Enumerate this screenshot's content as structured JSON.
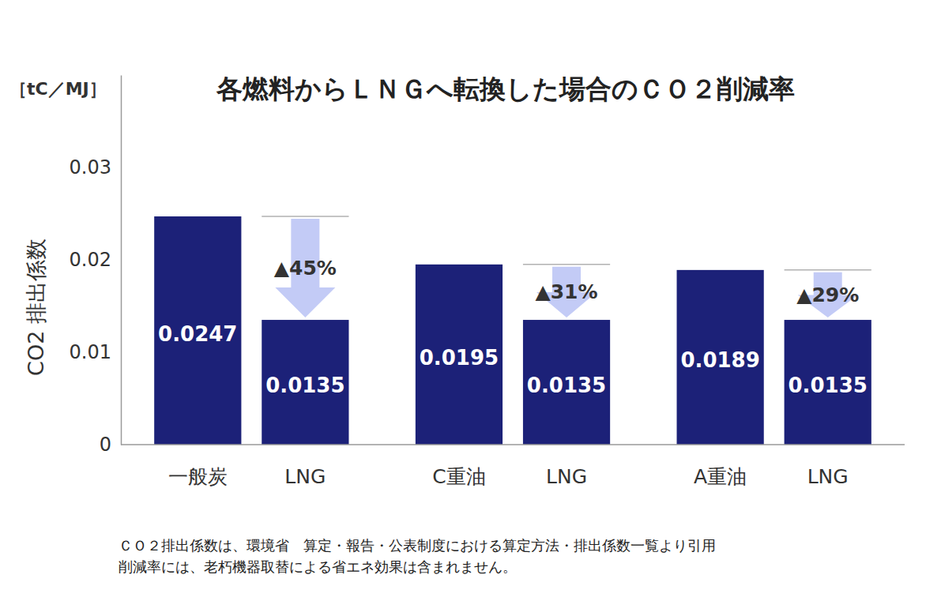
{
  "chart_data": {
    "type": "bar",
    "title": "各燃料からＬＮＧへ転換した場合のＣＯ２削減率",
    "unit_label": "［tC／MJ］",
    "y_label": "CO2 排出係数",
    "categories": [
      "一般炭",
      "LNG",
      "C重油",
      "LNG",
      "A重油",
      "LNG"
    ],
    "values": [
      0.0247,
      0.0135,
      0.0195,
      0.0135,
      0.0189,
      0.0135
    ],
    "color": "#1c2178",
    "data_labels": true,
    "grid": false,
    "ylim": [
      0,
      0.04
    ],
    "yticks": [
      0,
      0.01,
      0.02,
      0.03
    ],
    "annotations": [
      "▲45%",
      "▲31%",
      "▲29%"
    ],
    "notes": [
      "ＣＯ２排出係数は、環境省　算定・報告・公表制度における算定方法・排出係数一覧より引用",
      "削減率には、老朽機器取替による省エネ効果は含まれません。"
    ]
  }
}
